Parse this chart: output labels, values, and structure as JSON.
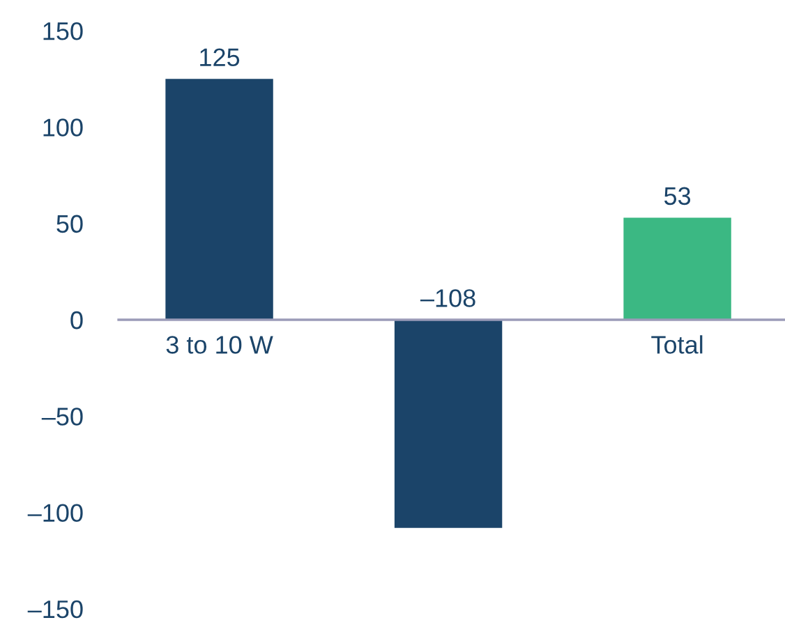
{
  "chart_data": {
    "type": "bar",
    "categories": [
      "3 to 10 W",
      null,
      "Total"
    ],
    "values": [
      125,
      -108,
      53
    ],
    "colors": [
      "#1b4469",
      "#1b4469",
      "#3bb883"
    ],
    "value_labels": [
      "125",
      "–108",
      "53"
    ],
    "ylim": [
      -150,
      150
    ],
    "yticks": [
      {
        "value": -150,
        "label": "–150"
      },
      {
        "value": -100,
        "label": "–100"
      },
      {
        "value": -50,
        "label": "–50"
      },
      0,
      50,
      100,
      150
    ]
  }
}
